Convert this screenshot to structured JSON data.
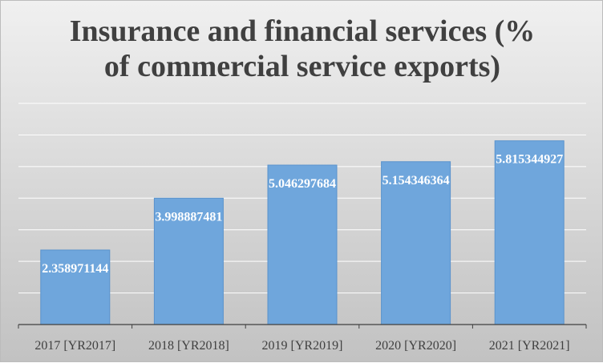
{
  "chart_data": {
    "type": "bar",
    "title_line1": "Insurance and financial services (%",
    "title_line2": "of commercial service exports)",
    "categories": [
      "2017 [YR2017]",
      "2018 [YR2018]",
      "2019 [YR2019]",
      "2020 [YR2020]",
      "2021 [YR2021]"
    ],
    "values": [
      2.358971144,
      3.998887481,
      5.046297684,
      5.154346364,
      5.815344927
    ],
    "data_labels": [
      "2.358971144",
      "3.998887481",
      "5.046297684",
      "5.154346364",
      "5.815344927"
    ],
    "ylim": [
      0,
      7
    ],
    "y_gridlines": [
      0,
      1,
      2,
      3,
      4,
      5,
      6,
      7
    ],
    "grid": true,
    "legend": "none",
    "bar_color": "#6fa6dc",
    "bar_edge_color": "#5a93cc",
    "axis_color": "#404040",
    "gridline_color": "#ffffff",
    "xlabel": "",
    "ylabel": ""
  }
}
